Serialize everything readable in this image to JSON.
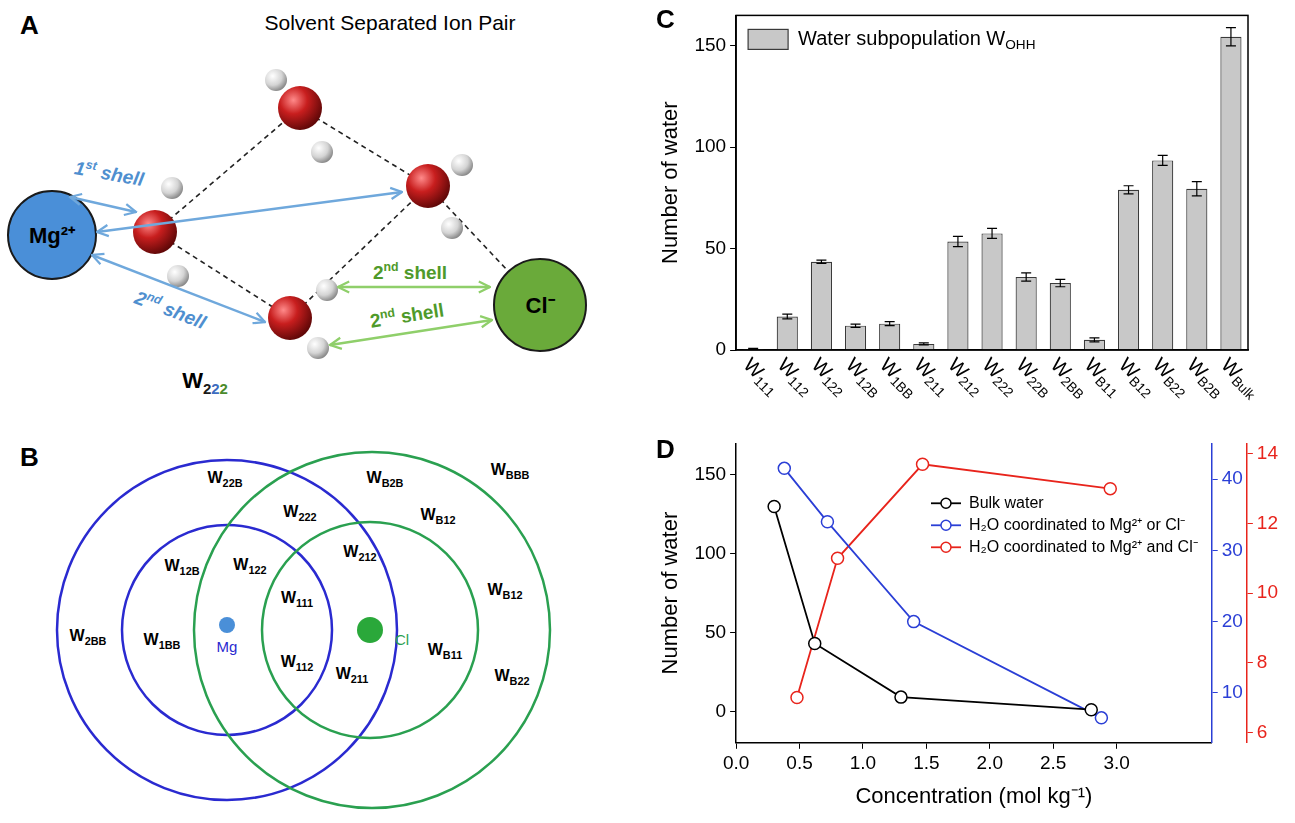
{
  "panels": [
    {
      "letter": "A",
      "title": "Solvent Separated Ion Pair",
      "ions": [
        "Mg²⁺",
        "Cl⁻"
      ],
      "arrows": [
        {
          "label": "1st shell",
          "ion": "Mg²⁺"
        },
        {
          "label": "2nd shell",
          "ion": "Mg²⁺"
        },
        {
          "label": "2nd shell",
          "ion": "Cl⁻"
        },
        {
          "label": "2nd shell",
          "ion": "Cl⁻"
        }
      ],
      "water_label": "W222"
    },
    {
      "letter": "B",
      "ions": [
        "Mg",
        "Cl"
      ],
      "regions": [
        "W22B",
        "WB2B",
        "WBBB",
        "W222",
        "W12B",
        "WB12",
        "W122",
        "W212",
        "W111",
        "WB12",
        "W2BB",
        "W1BB",
        "W112",
        "W211",
        "WB11",
        "WB22"
      ]
    }
  ],
  "chart_data": [
    {
      "panel": "C",
      "type": "bar",
      "y_label": "Number of water",
      "categories": [
        "W111",
        "W112",
        "W122",
        "W12B",
        "W1BB",
        "W211",
        "W212",
        "W222",
        "W22B",
        "W2BB",
        "WB11",
        "WB12",
        "WB22",
        "WB2B",
        "WBulk"
      ],
      "series": [
        {
          "name": "Water subpopulation WOHH",
          "color": "#c8c8c8",
          "values": [
            0.5,
            16.5,
            43.5,
            12,
            13,
            3,
            53.5,
            57.5,
            36,
            33,
            5,
            79,
            93.5,
            79.5,
            154.5
          ],
          "errors": [
            0.3,
            1.2,
            0.8,
            0.8,
            1,
            0.5,
            2.5,
            2.5,
            2,
            1.8,
            1,
            2,
            2.5,
            3.5,
            4.5
          ]
        }
      ],
      "ylim": [
        0,
        165
      ],
      "yticks": [
        0,
        50,
        100,
        150
      ],
      "grid": false,
      "legend": "upper left"
    },
    {
      "panel": "D",
      "type": "line",
      "x_label": "Concentration (mol kg⁻¹)",
      "y_label": "Number of water",
      "series": [
        {
          "name": "Bulk water",
          "color": "#000000",
          "marker": "open_circle",
          "line_style": "solid",
          "x": [
            0.3,
            0.62,
            1.3,
            2.8
          ],
          "values": [
            130,
            43,
            9,
            1
          ]
        },
        {
          "name": "H₂O coordinated to Mg²⁺ or Cl⁻",
          "color": "#2b3fd6",
          "marker": "open_circle",
          "line_style": "solid",
          "axis": "y2",
          "x": [
            0.38,
            0.72,
            1.4,
            2.88
          ],
          "values": [
            41.5,
            34,
            20,
            6.5
          ]
        },
        {
          "name": "H₂O coordinated to Mg²⁺ and Cl⁻",
          "color": "#e8241c",
          "marker": "open_circle",
          "line_style": "solid",
          "axis": "y3",
          "x": [
            0.48,
            0.8,
            1.47,
            2.95
          ],
          "values": [
            7,
            11,
            13.7,
            13
          ]
        }
      ],
      "xlim": [
        0,
        3.75
      ],
      "xticks": [
        {
          "value": 0,
          "label": "0.0"
        },
        0.5,
        {
          "value": 1,
          "label": "1.0"
        },
        1.5,
        {
          "value": 2,
          "label": "2.0"
        },
        2.5,
        {
          "value": 3,
          "label": "3.0"
        }
      ],
      "ylim": [
        -20,
        170
      ],
      "yticks": [
        0,
        50,
        100,
        150
      ],
      "y2lim": [
        3,
        45
      ],
      "y2ticks": [
        10,
        20,
        30,
        40
      ],
      "y3lim": [
        5.7,
        14.3
      ],
      "y3ticks": [
        6,
        8,
        10,
        12,
        14
      ],
      "grid": false,
      "legend": "upper right"
    }
  ]
}
